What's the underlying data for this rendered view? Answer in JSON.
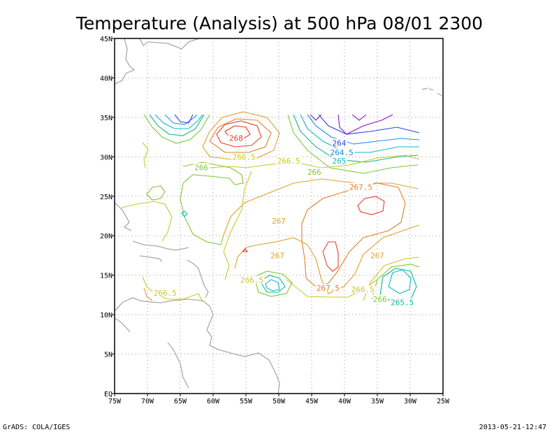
{
  "title": "Temperature (Analysis) at 500 hPa 08/01 2300",
  "footer": {
    "left": "GrADS: COLA/IGES",
    "right": "2013-05-21-12:47"
  },
  "map": {
    "lon_range": [
      -75,
      -25
    ],
    "lat_range": [
      0,
      45
    ],
    "x_ticks": [
      {
        "lon": -75,
        "label": "75W"
      },
      {
        "lon": -70,
        "label": "70W"
      },
      {
        "lon": -65,
        "label": "65W"
      },
      {
        "lon": -60,
        "label": "60W"
      },
      {
        "lon": -55,
        "label": "55W"
      },
      {
        "lon": -50,
        "label": "50W"
      },
      {
        "lon": -45,
        "label": "45W"
      },
      {
        "lon": -40,
        "label": "40W"
      },
      {
        "lon": -35,
        "label": "35W"
      },
      {
        "lon": -30,
        "label": "30W"
      },
      {
        "lon": -25,
        "label": "25W"
      }
    ],
    "y_ticks": [
      {
        "lat": 0,
        "label": "EQ"
      },
      {
        "lat": 5,
        "label": "5N"
      },
      {
        "lat": 10,
        "label": "10N"
      },
      {
        "lat": 15,
        "label": "15N"
      },
      {
        "lat": 20,
        "label": "20N"
      },
      {
        "lat": 25,
        "label": "25N"
      },
      {
        "lat": 30,
        "label": "30N"
      },
      {
        "lat": 35,
        "label": "35N"
      },
      {
        "lat": 40,
        "label": "40N"
      },
      {
        "lat": 45,
        "label": "45N"
      }
    ],
    "grid": true,
    "contour_labels": [
      {
        "text": "268",
        "lon": -56.5,
        "lat": 32.2,
        "color": "#e0402a"
      },
      {
        "text": "266.5",
        "lon": -55.3,
        "lat": 29.8,
        "color": "#c8c82a"
      },
      {
        "text": "266.5",
        "lon": -48.5,
        "lat": 29.3,
        "color": "#c8c82a"
      },
      {
        "text": "266",
        "lon": -61.8,
        "lat": 28.5,
        "color": "#7ec832"
      },
      {
        "text": "266",
        "lon": -44.6,
        "lat": 27.9,
        "color": "#7ec832"
      },
      {
        "text": "264",
        "lon": -40.8,
        "lat": 31.6,
        "color": "#2b43e0"
      },
      {
        "text": "264.5",
        "lon": -40.4,
        "lat": 30.4,
        "color": "#1e8fe6"
      },
      {
        "text": "265",
        "lon": -40.8,
        "lat": 29.3,
        "color": "#10b8c8"
      },
      {
        "text": "267.5",
        "lon": -37.5,
        "lat": 26.0,
        "color": "#e0802a"
      },
      {
        "text": "267",
        "lon": -50.0,
        "lat": 21.7,
        "color": "#e0a02a"
      },
      {
        "text": "267",
        "lon": -50.2,
        "lat": 17.3,
        "color": "#e0a02a"
      },
      {
        "text": "267",
        "lon": -35.0,
        "lat": 17.3,
        "color": "#e0a02a"
      },
      {
        "text": "266.5",
        "lon": -54.1,
        "lat": 14.2,
        "color": "#c8c82a"
      },
      {
        "text": "267.5",
        "lon": -42.5,
        "lat": 13.2,
        "color": "#e0802a"
      },
      {
        "text": "266.5",
        "lon": -37.2,
        "lat": 13.0,
        "color": "#c8c82a"
      },
      {
        "text": "266",
        "lon": -34.6,
        "lat": 11.8,
        "color": "#7ec832"
      },
      {
        "text": "265.5",
        "lon": -31.2,
        "lat": 11.4,
        "color": "#10b890"
      },
      {
        "text": "266.5",
        "lon": -67.3,
        "lat": 12.6,
        "color": "#c8c82a"
      }
    ]
  }
}
